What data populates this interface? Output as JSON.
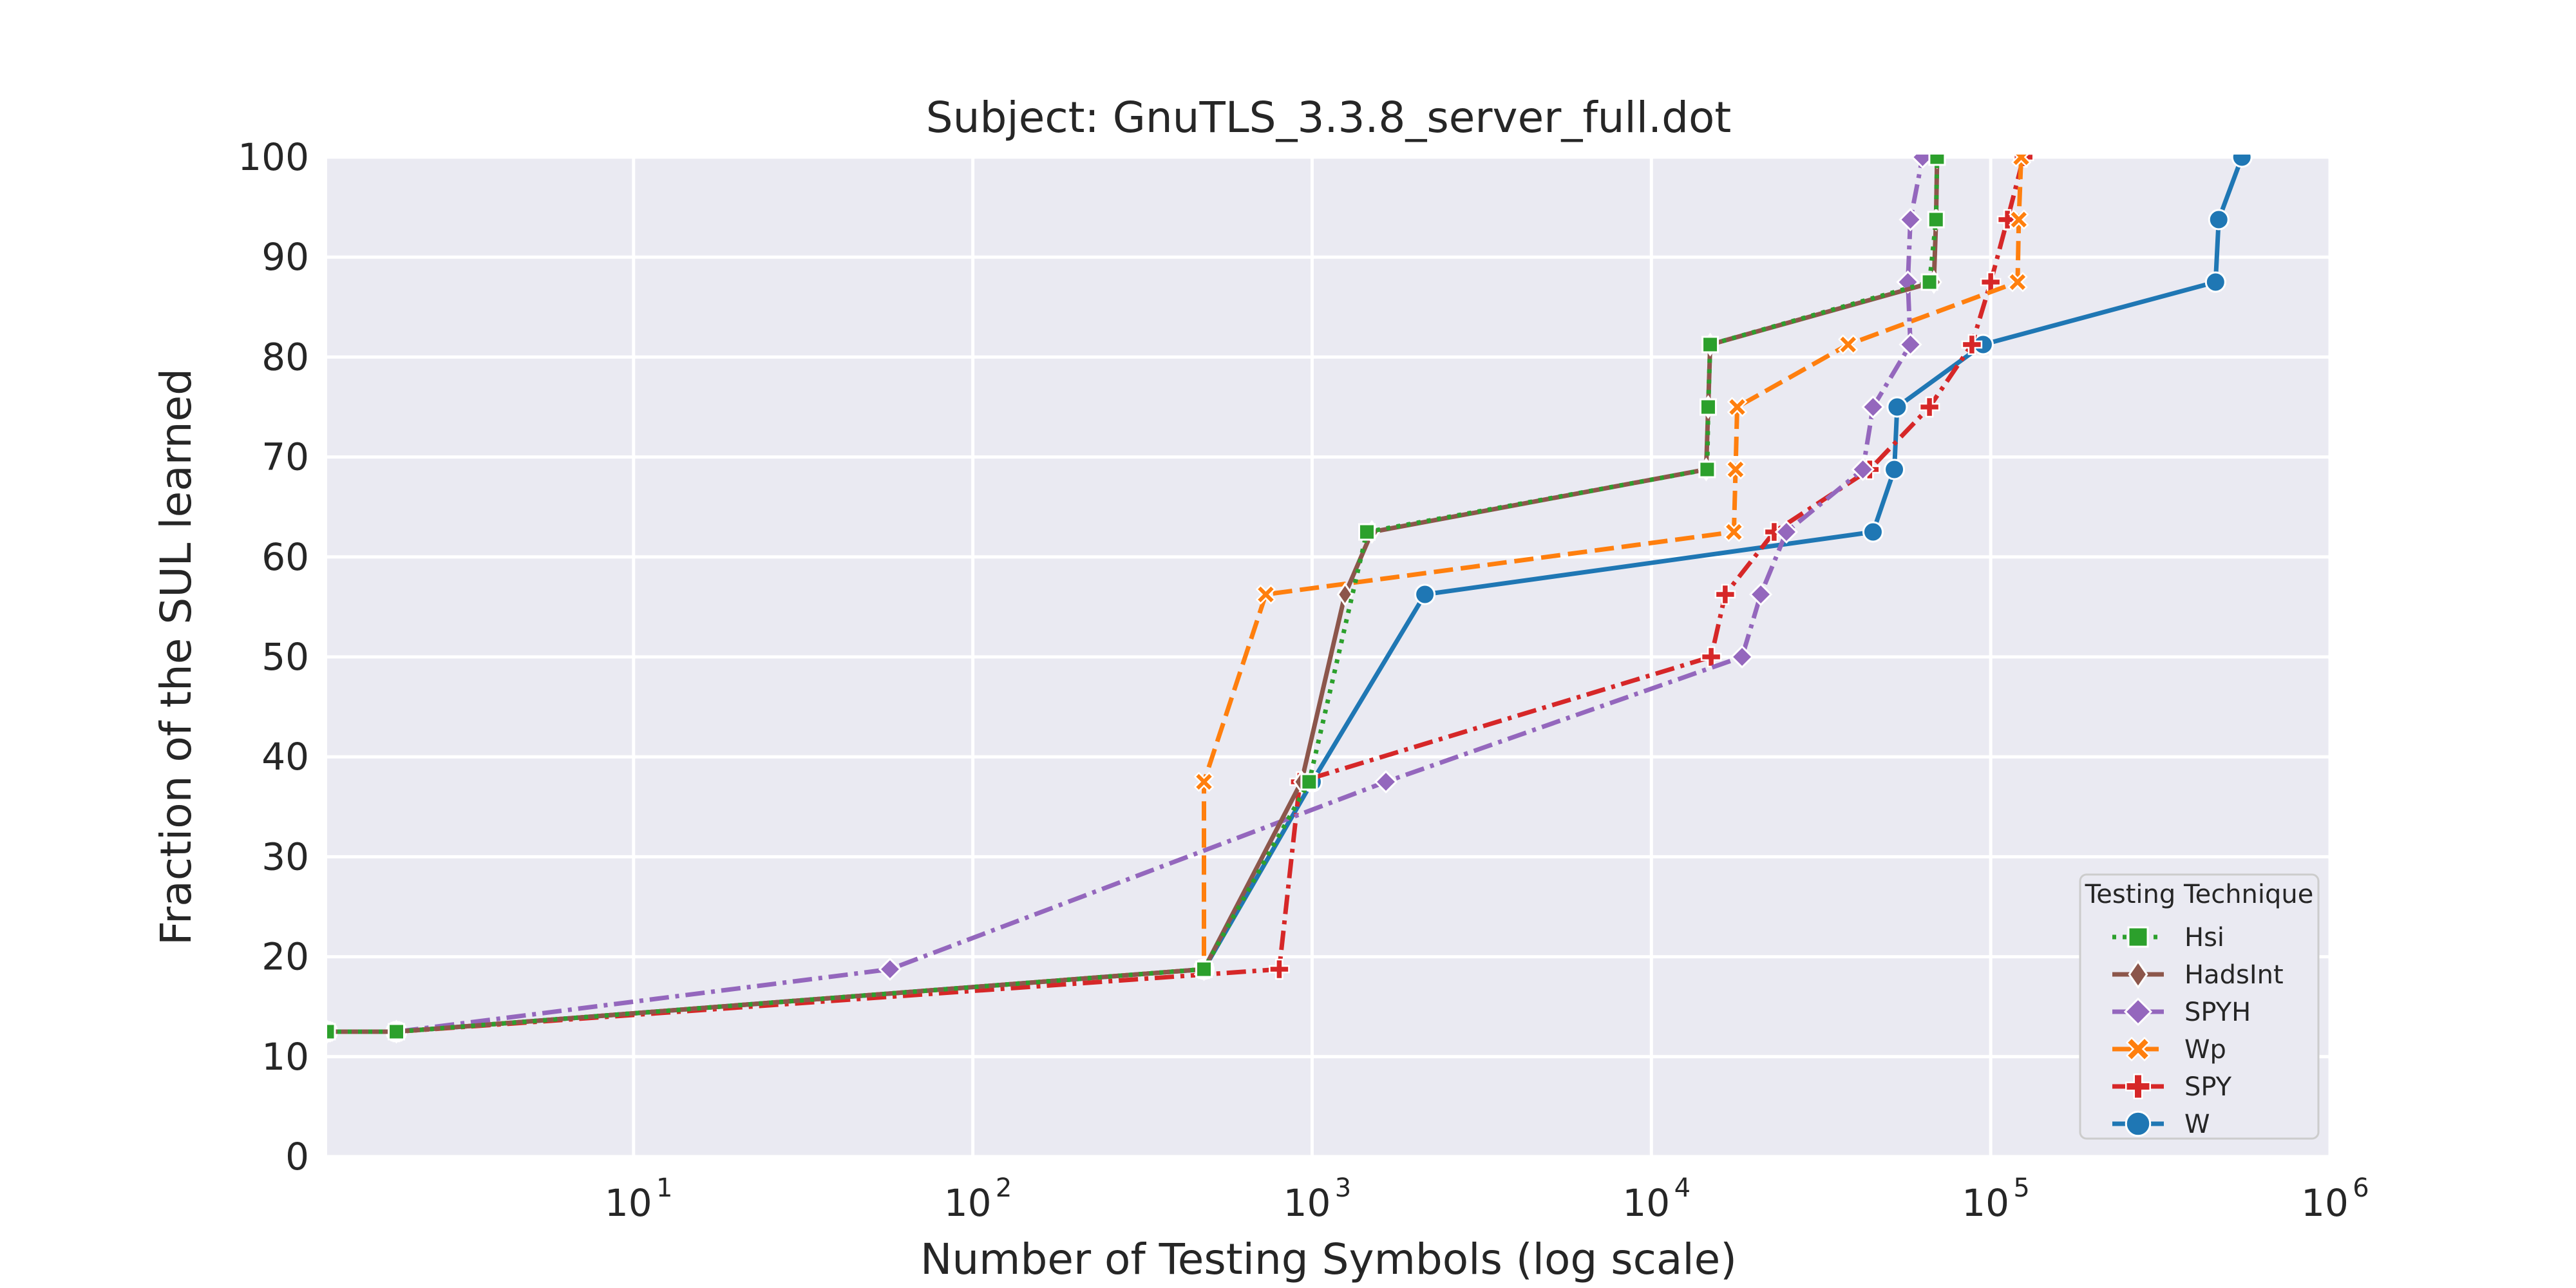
{
  "chart_data": {
    "type": "line",
    "title": "Subject: GnuTLS_3.3.8_server_full.dot",
    "xlabel": "Number of Testing Symbols (log scale)",
    "ylabel": "Fraction of the SUL learned",
    "xscale": "log",
    "xlim": [
      1.25,
      1000000
    ],
    "ylim": [
      0,
      100
    ],
    "yticks": [
      0,
      10,
      20,
      30,
      40,
      50,
      60,
      70,
      80,
      90,
      100
    ],
    "xticks": [
      {
        "value": 10,
        "base": "10",
        "exp": "1"
      },
      {
        "value": 100,
        "base": "10",
        "exp": "2"
      },
      {
        "value": 1000,
        "base": "10",
        "exp": "3"
      },
      {
        "value": 10000,
        "base": "10",
        "exp": "4"
      },
      {
        "value": 100000,
        "base": "10",
        "exp": "5"
      },
      {
        "value": 1000000,
        "base": "10",
        "exp": "6"
      }
    ],
    "grid": true,
    "background": "#eaeaf2",
    "legend": {
      "title": "Testing Technique",
      "placement": "lower-right"
    },
    "series": [
      {
        "name": "W",
        "color": "#1f77b4",
        "marker": "circle",
        "dash": "solid",
        "points": [
          [
            1.25,
            12.5
          ],
          [
            2,
            12.5
          ],
          [
            480,
            18.75
          ],
          [
            1000,
            37.5
          ],
          [
            2150,
            56.25
          ],
          [
            45000,
            62.5
          ],
          [
            52000,
            68.75
          ],
          [
            53000,
            75
          ],
          [
            95000,
            81.25
          ],
          [
            460000,
            87.5
          ],
          [
            470000,
            93.75
          ],
          [
            550000,
            100
          ]
        ]
      },
      {
        "name": "SPY",
        "color": "#d62728",
        "marker": "plus",
        "dash": "dashdot",
        "points": [
          [
            1.25,
            12.5
          ],
          [
            2,
            12.5
          ],
          [
            800,
            18.75
          ],
          [
            920,
            37.5
          ],
          [
            15000,
            50
          ],
          [
            16500,
            56.25
          ],
          [
            23000,
            62.5
          ],
          [
            44000,
            68.75
          ],
          [
            66000,
            75
          ],
          [
            88000,
            81.25
          ],
          [
            100000,
            87.5
          ],
          [
            112000,
            93.75
          ],
          [
            125000,
            100
          ]
        ]
      },
      {
        "name": "Wp",
        "color": "#ff7f0e",
        "marker": "x",
        "dash": "dashed",
        "points": [
          [
            1.25,
            12.5
          ],
          [
            2,
            12.5
          ],
          [
            480,
            18.75
          ],
          [
            480,
            37.5
          ],
          [
            730,
            56.25
          ],
          [
            17500,
            62.5
          ],
          [
            17700,
            68.75
          ],
          [
            17900,
            75
          ],
          [
            38000,
            81.25
          ],
          [
            120000,
            87.5
          ],
          [
            121000,
            93.75
          ],
          [
            123000,
            100
          ]
        ]
      },
      {
        "name": "SPYH",
        "color": "#9467bd",
        "marker": "diamond",
        "dash": "dashdot",
        "points": [
          [
            1.25,
            12.5
          ],
          [
            2,
            12.5
          ],
          [
            57,
            18.75
          ],
          [
            1650,
            37.5
          ],
          [
            18500,
            50
          ],
          [
            21000,
            56.25
          ],
          [
            25000,
            62.5
          ],
          [
            42000,
            68.75
          ],
          [
            45000,
            75
          ],
          [
            58000,
            81.25
          ],
          [
            57000,
            87.5
          ],
          [
            58000,
            93.75
          ],
          [
            63000,
            100
          ]
        ]
      },
      {
        "name": "HadsInt",
        "color": "#8c564b",
        "marker": "thin-diamond",
        "dash": "solid",
        "points": [
          [
            1.25,
            12.5
          ],
          [
            2,
            12.5
          ],
          [
            480,
            18.75
          ],
          [
            930,
            37.5
          ],
          [
            1250,
            56.25
          ],
          [
            1500,
            62.5
          ],
          [
            14500,
            68.75
          ],
          [
            14700,
            75
          ],
          [
            14900,
            81.25
          ],
          [
            68000,
            87.5
          ],
          [
            69000,
            93.75
          ],
          [
            69500,
            100
          ]
        ]
      },
      {
        "name": "Hsi",
        "color": "#2ca02c",
        "marker": "square",
        "dash": "dotted",
        "points": [
          [
            1.25,
            12.5
          ],
          [
            2,
            12.5
          ],
          [
            480,
            18.75
          ],
          [
            980,
            37.5
          ],
          [
            1450,
            62.5
          ],
          [
            14600,
            68.75
          ],
          [
            14700,
            75
          ],
          [
            14900,
            81.25
          ],
          [
            66000,
            87.5
          ],
          [
            69000,
            93.75
          ],
          [
            69500,
            100
          ]
        ]
      }
    ],
    "legend_order": [
      "Hsi",
      "HadsInt",
      "SPYH",
      "Wp",
      "SPY",
      "W"
    ]
  }
}
